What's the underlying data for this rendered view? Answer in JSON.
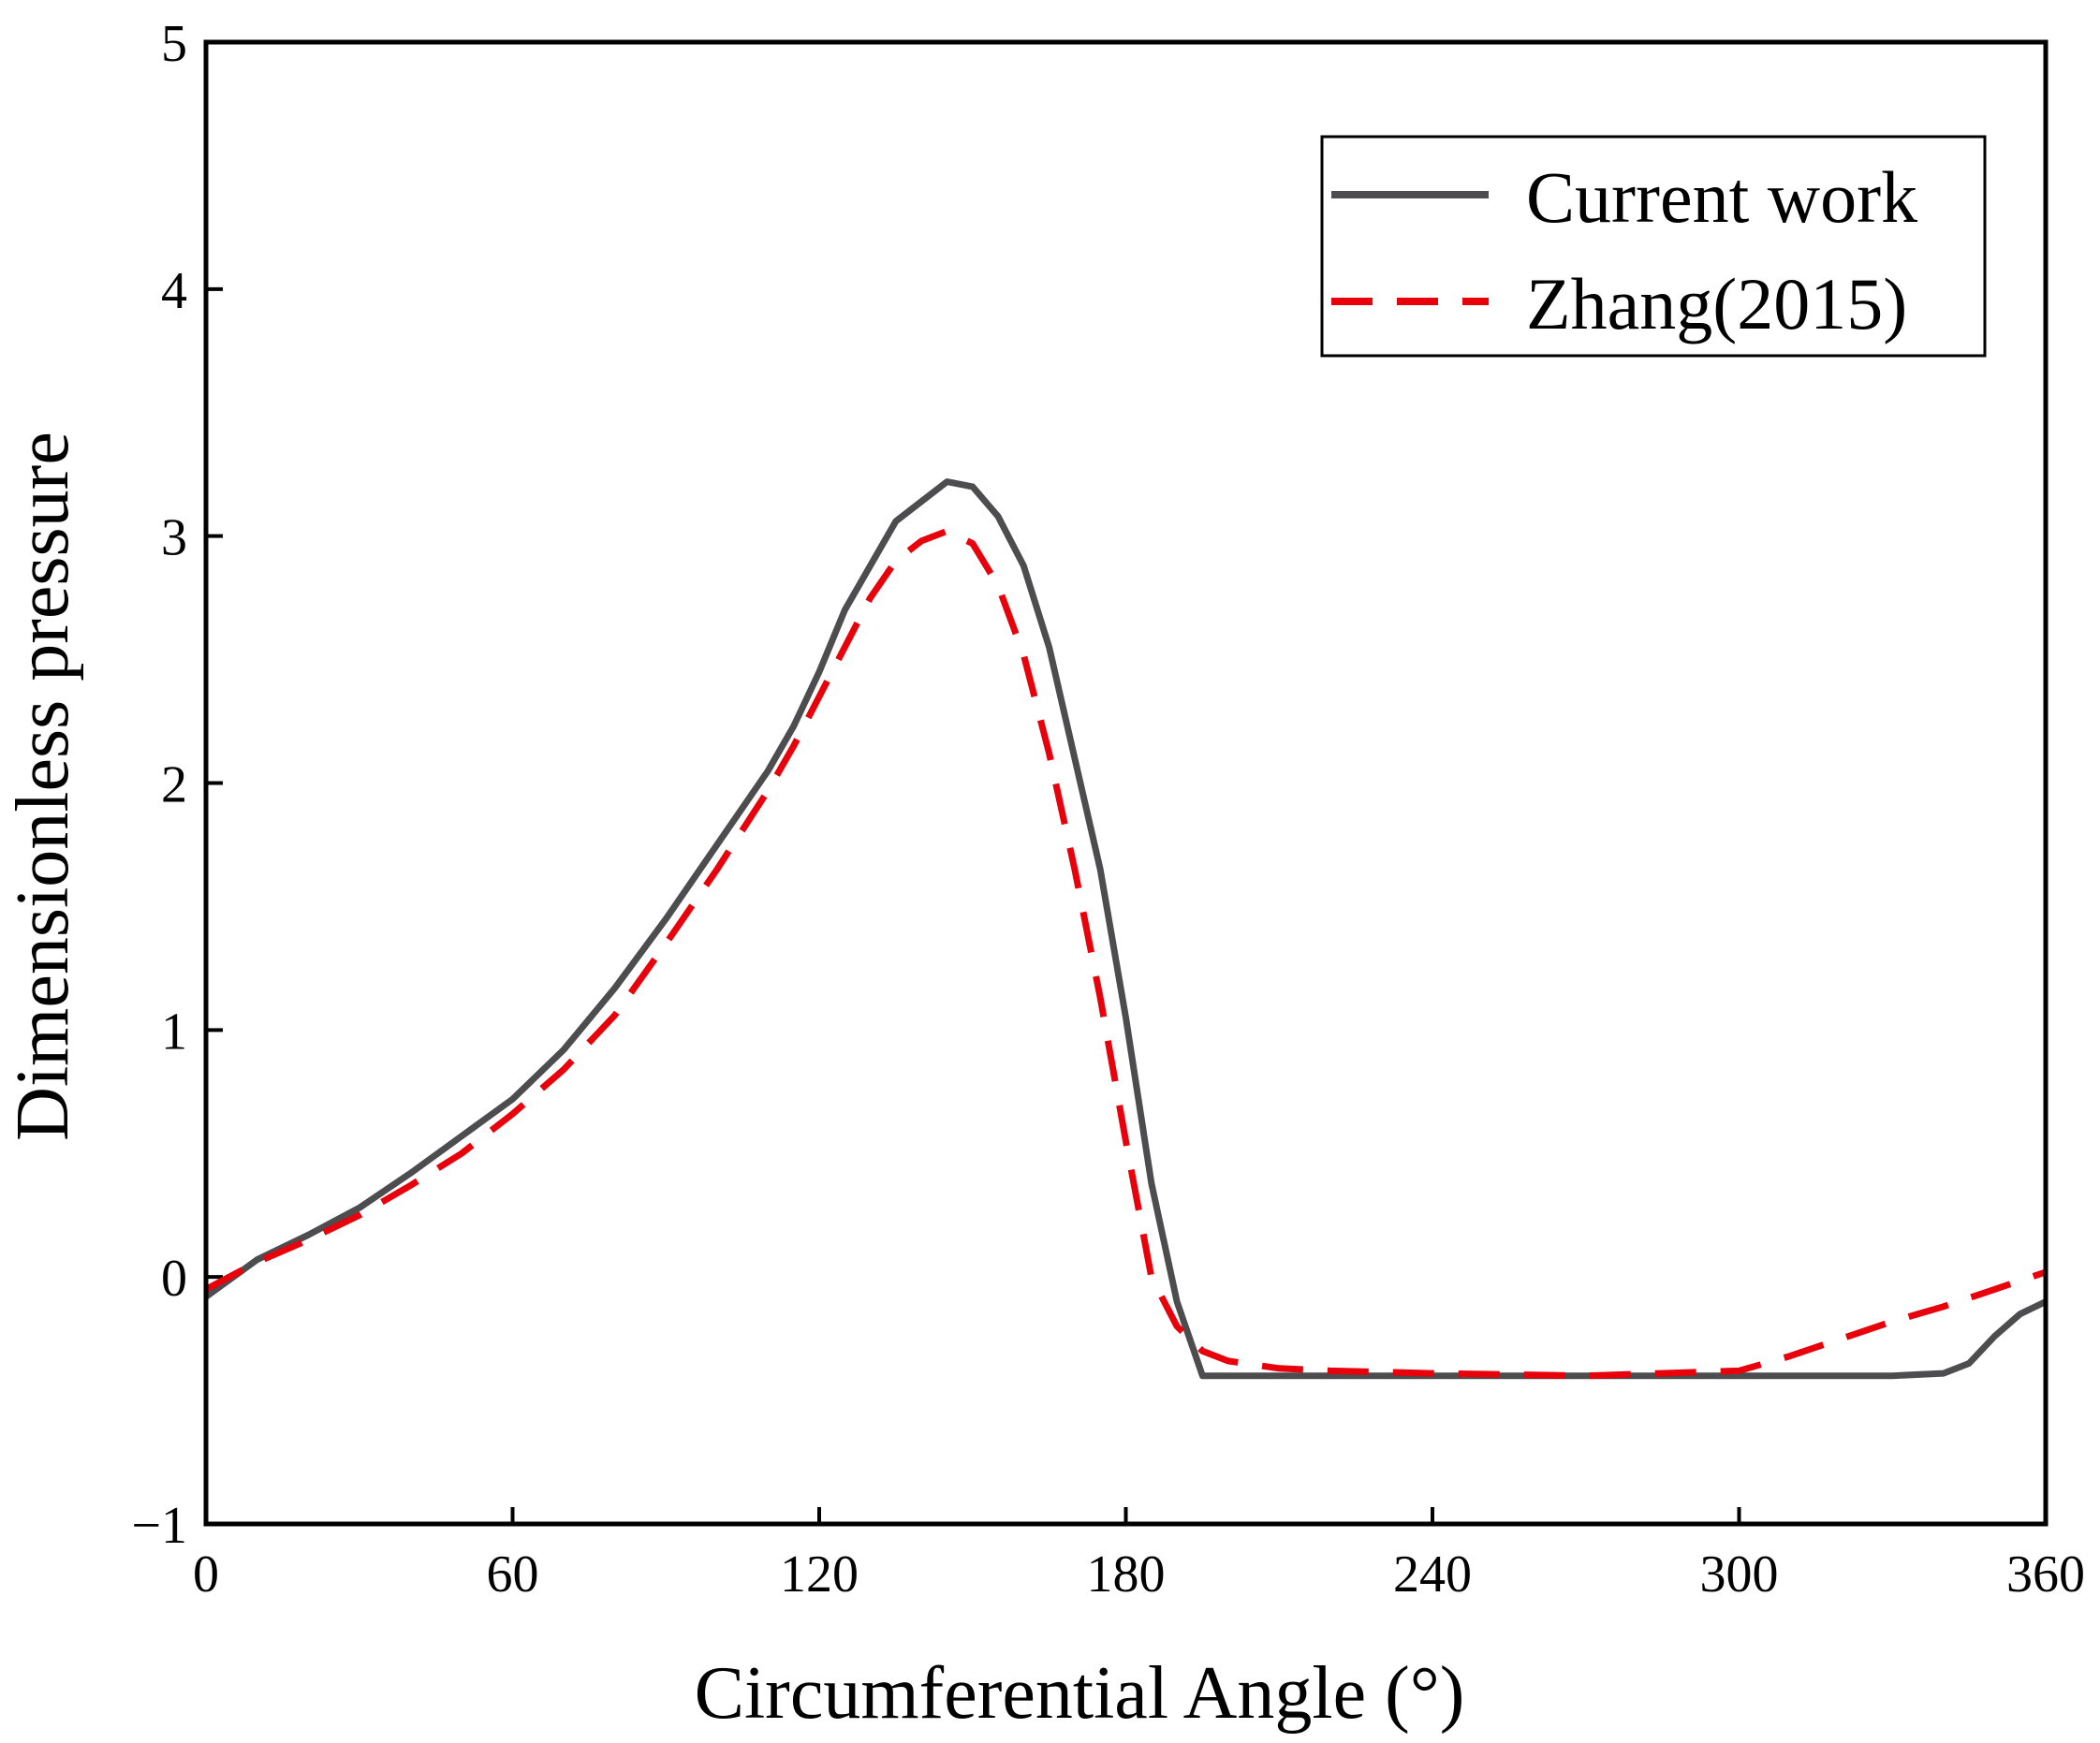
{
  "chart_data": {
    "type": "line",
    "title": "",
    "xlabel": "Circumferential Angle (°)",
    "ylabel": "Dimensionless pressure",
    "xlim": [
      0,
      360
    ],
    "ylim": [
      -1,
      5
    ],
    "xticks": [
      0,
      60,
      120,
      180,
      240,
      300,
      360
    ],
    "yticks": [
      -1,
      0,
      1,
      2,
      3,
      4,
      5
    ],
    "xtick_labels": [
      "0",
      "60",
      "120",
      "180",
      "240",
      "300",
      "360"
    ],
    "ytick_labels": [
      "−1",
      "0",
      "1",
      "2",
      "3",
      "4",
      "5"
    ],
    "grid": false,
    "legend_position": "top-right",
    "series": [
      {
        "name": "Current work",
        "color": "#4d4d4f",
        "style": "solid",
        "x": [
          0,
          10,
          20,
          30,
          40,
          50,
          60,
          70,
          80,
          90,
          100,
          110,
          115,
          120,
          125,
          130,
          135,
          140,
          145,
          150,
          155,
          160,
          165,
          170,
          175,
          180,
          185,
          190,
          195,
          198,
          210,
          240,
          270,
          300,
          330,
          340,
          345,
          350,
          355,
          360
        ],
        "y": [
          -0.08,
          0.07,
          0.17,
          0.28,
          0.42,
          0.57,
          0.72,
          0.92,
          1.17,
          1.45,
          1.75,
          2.05,
          2.23,
          2.45,
          2.7,
          2.88,
          3.06,
          3.14,
          3.22,
          3.2,
          3.08,
          2.88,
          2.55,
          2.1,
          1.65,
          1.05,
          0.38,
          -0.1,
          -0.4,
          -0.4,
          -0.4,
          -0.4,
          -0.4,
          -0.4,
          -0.4,
          -0.39,
          -0.35,
          -0.24,
          -0.15,
          -0.1
        ]
      },
      {
        "name": "Zhang(2015)",
        "color": "#e8000b",
        "style": "dashed",
        "x": [
          0,
          10,
          20,
          30,
          40,
          50,
          60,
          70,
          80,
          90,
          100,
          110,
          115,
          120,
          125,
          130,
          135,
          140,
          145,
          150,
          155,
          160,
          165,
          170,
          175,
          180,
          185,
          190,
          195,
          200,
          210,
          220,
          240,
          270,
          300,
          310,
          320,
          330,
          340,
          350,
          360
        ],
        "y": [
          -0.05,
          0.06,
          0.15,
          0.25,
          0.37,
          0.5,
          0.66,
          0.84,
          1.06,
          1.35,
          1.65,
          1.97,
          2.15,
          2.35,
          2.55,
          2.75,
          2.9,
          2.98,
          3.02,
          2.97,
          2.8,
          2.52,
          2.12,
          1.65,
          1.13,
          0.55,
          0.0,
          -0.2,
          -0.3,
          -0.34,
          -0.37,
          -0.38,
          -0.39,
          -0.4,
          -0.38,
          -0.32,
          -0.25,
          -0.18,
          -0.12,
          -0.05,
          0.02
        ]
      }
    ]
  }
}
